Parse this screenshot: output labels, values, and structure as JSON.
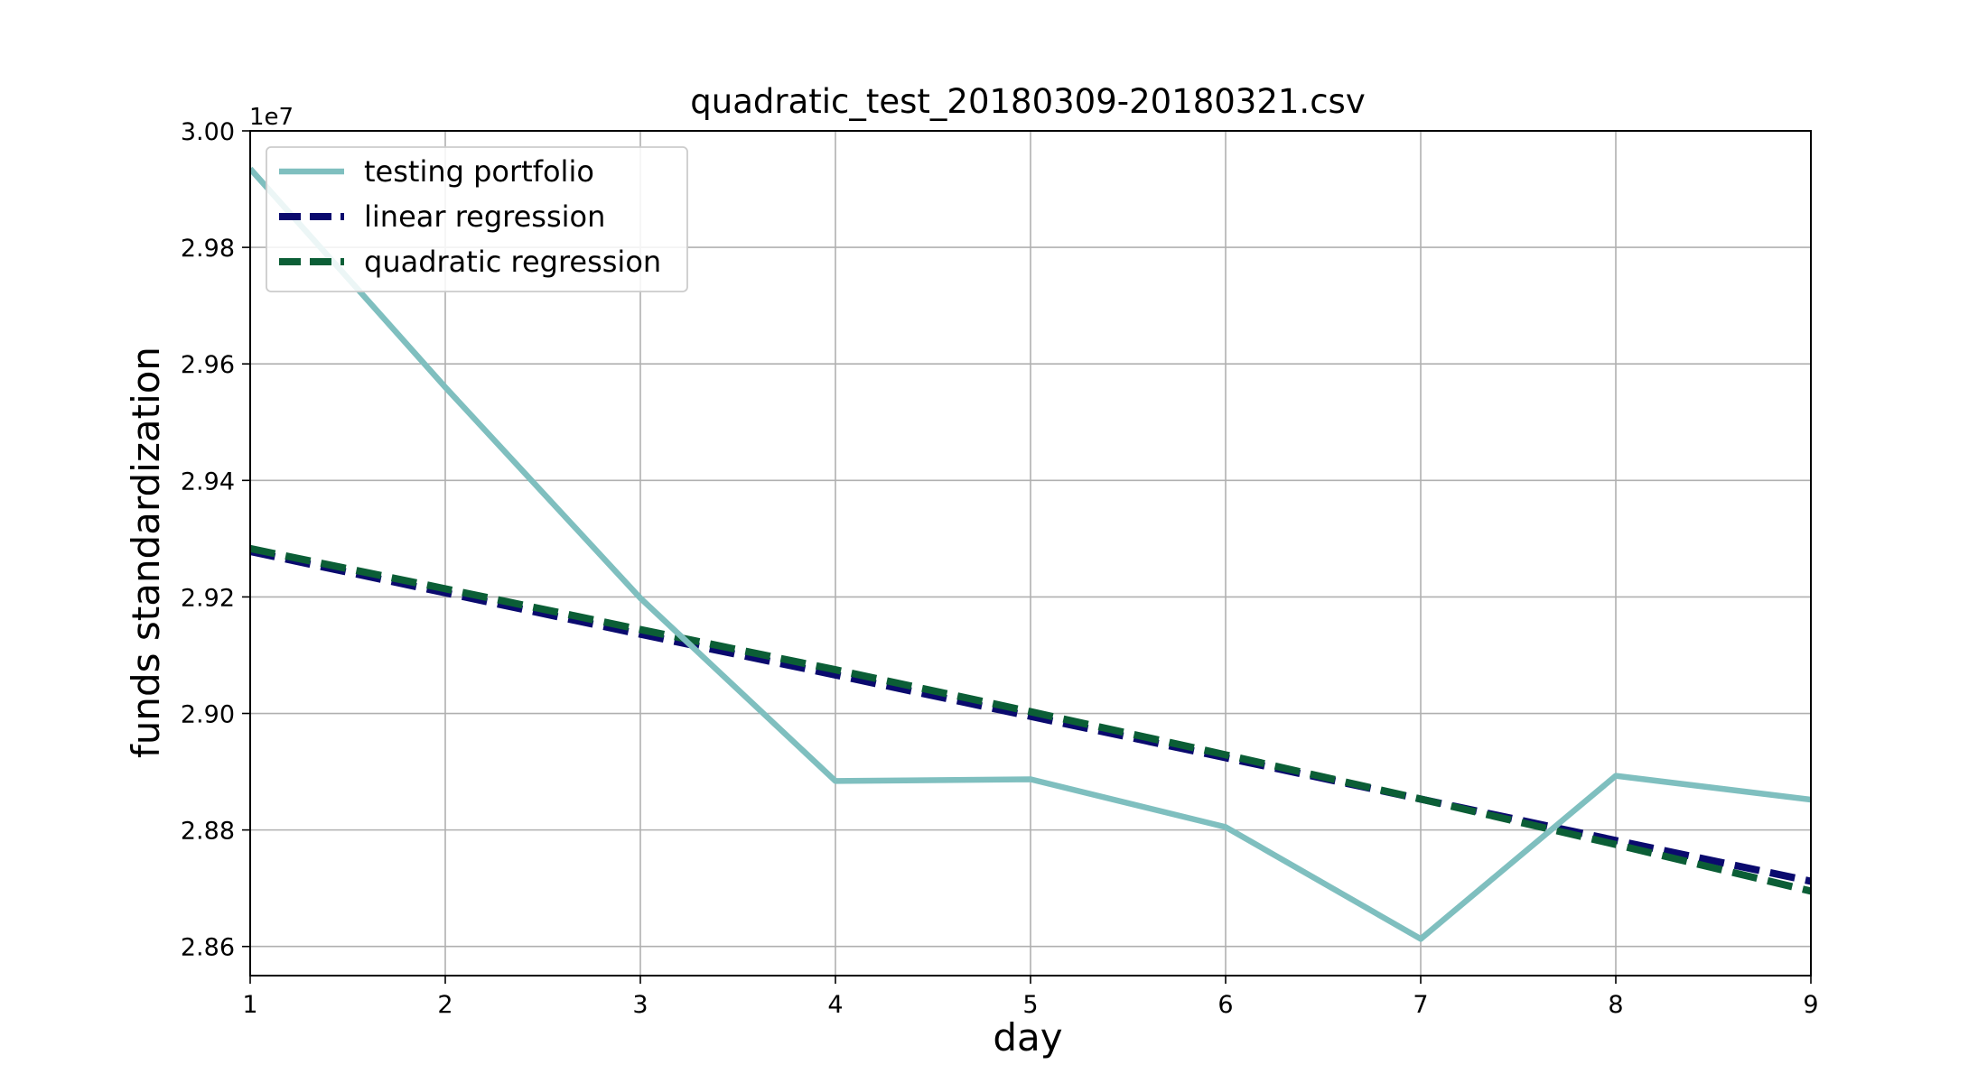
{
  "chart_data": {
    "type": "line",
    "title": "quadratic_test_20180309-20180321.csv",
    "xlabel": "day",
    "ylabel": "funds standardization",
    "y_offset_text": "1e7",
    "xlim": [
      1,
      9
    ],
    "ylim": [
      2.855,
      3.0
    ],
    "x_ticks": [
      1,
      2,
      3,
      4,
      5,
      6,
      7,
      8,
      9
    ],
    "x_tick_labels": [
      "1",
      "2",
      "3",
      "4",
      "5",
      "6",
      "7",
      "8",
      "9"
    ],
    "y_ticks": [
      2.86,
      2.88,
      2.9,
      2.92,
      2.94,
      2.96,
      2.98,
      3.0
    ],
    "y_tick_labels": [
      "2.86",
      "2.88",
      "2.90",
      "2.92",
      "2.94",
      "2.96",
      "2.98",
      "3.00"
    ],
    "grid": true,
    "legend_position": "upper-left",
    "x": [
      1,
      2,
      3,
      4,
      5,
      6,
      7,
      8,
      9
    ],
    "series": [
      {
        "name": "testing portfolio",
        "color": "#7fbfbf",
        "style": "solid",
        "values": [
          2.9935,
          2.956,
          2.9198,
          2.8884,
          2.8887,
          2.8805,
          2.8613,
          2.8893,
          2.8852
        ]
      },
      {
        "name": "linear regression",
        "color": "#0a0a6e",
        "style": "dashed",
        "values": [
          2.9278,
          2.9207,
          2.9136,
          2.9066,
          2.8995,
          2.8924,
          2.8853,
          2.8782,
          2.8712
        ]
      },
      {
        "name": "quadratic regression",
        "color": "#0b5e36",
        "style": "dashed",
        "values": [
          2.9283,
          2.9214,
          2.9144,
          2.9075,
          2.9003,
          2.8929,
          2.8853,
          2.8775,
          2.8695
        ]
      }
    ]
  }
}
